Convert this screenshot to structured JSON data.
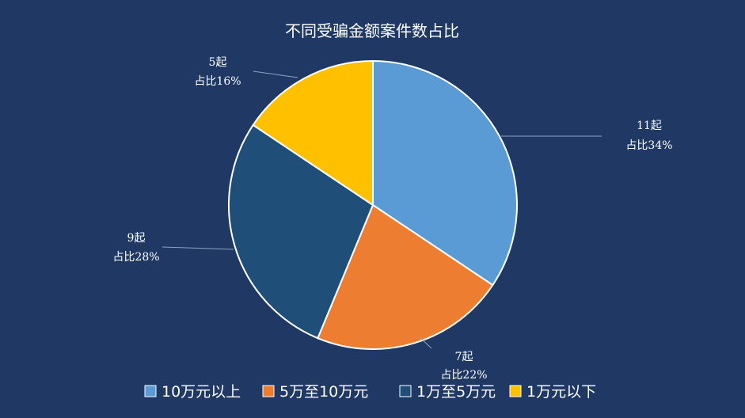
{
  "chart_data": {
    "type": "pie",
    "title": "不同受骗金额案件数占比",
    "slices": [
      {
        "name": "10万元以上",
        "value": 11,
        "count_label": "11起",
        "pct_label": "占比34%",
        "color": "#5b9bd5"
      },
      {
        "name": "5万至10万元",
        "value": 7,
        "count_label": "7起",
        "pct_label": "占比22%",
        "color": "#ed7d31"
      },
      {
        "name": "1万至5万元",
        "value": 9,
        "count_label": "9起",
        "pct_label": "占比28%",
        "color": "#1f4e79"
      },
      {
        "name": "1万元以下",
        "value": 5,
        "count_label": "5起",
        "pct_label": "占比16%",
        "color": "#ffc000"
      }
    ],
    "legend_position": "bottom"
  }
}
